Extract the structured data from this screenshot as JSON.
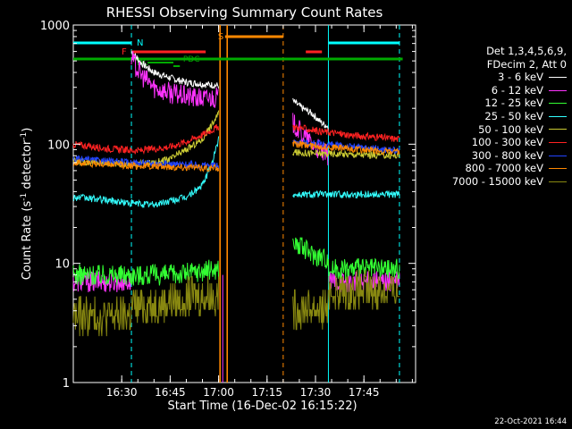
{
  "chart_data": {
    "type": "line",
    "title": "RHESSI Observing Summary Count Rates",
    "xlabel": "Start Time (16-Dec-02 16:15:22)",
    "ylabel": "Count Rate (s-1 detector-1)",
    "y_scale": "log",
    "ylim": [
      1,
      1000
    ],
    "xlim_minutes_after_1615": [
      0,
      106
    ],
    "x_ticks": [
      "16:30",
      "16:45",
      "17:00",
      "17:15",
      "17:30",
      "17:45"
    ],
    "y_ticks": [
      "1",
      "10",
      "100",
      "1000"
    ],
    "data_gap": [
      "17:01",
      "17:23"
    ],
    "night_intervals": [
      [
        "16:15",
        "16:33"
      ],
      [
        "17:34",
        "17:56"
      ]
    ],
    "saa_interval": [
      "17:02",
      "17:20"
    ],
    "flare_intervals": [
      [
        "16:33",
        "16:56"
      ],
      [
        "17:27",
        "17:32"
      ]
    ],
    "attenuator_interval": [
      "16:15",
      "17:57"
    ],
    "flag_labels": {
      "night": "N",
      "saa": "S",
      "flare": "F",
      "decimation": "DC",
      "pdc": "PDC"
    },
    "series": [
      {
        "name": "3 - 6 keV",
        "color": "#ffffff",
        "segments": [
          {
            "x": [
              "16:33",
              "16:36",
              "16:40",
              "16:45",
              "16:50",
              "16:55",
              "17:00"
            ],
            "y": [
              600,
              480,
              400,
              360,
              330,
              320,
              310
            ]
          },
          {
            "x": [
              "17:23",
              "17:26",
              "17:29",
              "17:32",
              "17:34"
            ],
            "y": [
              230,
              200,
              180,
              150,
              140
            ]
          }
        ]
      },
      {
        "name": "6 - 12 keV",
        "color": "#ff33ff",
        "segments": [
          {
            "x": [
              "16:15",
              "16:33"
            ],
            "y": [
              7,
              7
            ]
          },
          {
            "x": [
              "16:33",
              "16:36",
              "16:40",
              "16:45",
              "16:50",
              "16:55",
              "17:00"
            ],
            "y": [
              520,
              380,
              300,
              270,
              250,
              240,
              250
            ]
          },
          {
            "x": [
              "17:23",
              "17:26",
              "17:29",
              "17:32",
              "17:34"
            ],
            "y": [
              150,
              120,
              100,
              85,
              80
            ]
          },
          {
            "x": [
              "17:34",
              "17:56"
            ],
            "y": [
              7,
              7
            ]
          }
        ]
      },
      {
        "name": "12 - 25 keV",
        "color": "#33ff33",
        "segments": [
          {
            "x": [
              "16:15",
              "16:33"
            ],
            "y": [
              8,
              8
            ]
          },
          {
            "x": [
              "16:33",
              "16:45",
              "17:00"
            ],
            "y": [
              8,
              8,
              9
            ]
          },
          {
            "x": [
              "17:23",
              "17:29",
              "17:34"
            ],
            "y": [
              15,
              12,
              11
            ]
          },
          {
            "x": [
              "17:34",
              "17:56"
            ],
            "y": [
              9,
              9
            ]
          }
        ]
      },
      {
        "name": "25 - 50 keV",
        "color": "#33ffff",
        "segments": [
          {
            "x": [
              "16:15",
              "16:25",
              "16:33",
              "16:40",
              "16:50",
              "16:55",
              "16:58",
              "17:00"
            ],
            "y": [
              36,
              34,
              32,
              31,
              36,
              45,
              70,
              110
            ]
          },
          {
            "x": [
              "17:23",
              "17:56"
            ],
            "y": [
              38,
              38
            ]
          }
        ]
      },
      {
        "name": "50 - 100 keV",
        "color": "#cccc33",
        "segments": [
          {
            "x": [
              "16:15",
              "16:33",
              "16:40",
              "16:45",
              "16:50",
              "16:55",
              "17:00"
            ],
            "y": [
              72,
              68,
              70,
              75,
              90,
              110,
              180
            ]
          },
          {
            "x": [
              "17:23",
              "17:56"
            ],
            "y": [
              85,
              80
            ]
          }
        ]
      },
      {
        "name": "100 - 300 keV",
        "color": "#ff2222",
        "segments": [
          {
            "x": [
              "16:15",
              "16:25",
              "16:35",
              "16:45",
              "16:50",
              "16:55",
              "17:00"
            ],
            "y": [
              100,
              92,
              88,
              95,
              105,
              120,
              140
            ]
          },
          {
            "x": [
              "17:23",
              "17:30",
              "17:40",
              "17:56"
            ],
            "y": [
              140,
              130,
              120,
              110
            ]
          }
        ]
      },
      {
        "name": "300 - 800 keV",
        "color": "#2244ff",
        "segments": [
          {
            "x": [
              "16:15",
              "16:33",
              "17:00"
            ],
            "y": [
              75,
              70,
              66
            ]
          },
          {
            "x": [
              "17:23",
              "17:56"
            ],
            "y": [
              105,
              88
            ]
          }
        ]
      },
      {
        "name": "800 - 7000 keV",
        "color": "#ff8800",
        "segments": [
          {
            "x": [
              "16:15",
              "16:33",
              "17:00"
            ],
            "y": [
              70,
              66,
              63
            ]
          },
          {
            "x": [
              "17:23",
              "17:56"
            ],
            "y": [
              100,
              85
            ]
          }
        ]
      },
      {
        "name": "7000 - 15000 keV",
        "color": "#888811",
        "segments": [
          {
            "x": [
              "16:15",
              "16:33"
            ],
            "y": [
              3.6,
              3.6
            ]
          },
          {
            "x": [
              "16:33",
              "16:45",
              "17:00"
            ],
            "y": [
              4.2,
              4.8,
              5.5
            ]
          },
          {
            "x": [
              "17:23",
              "17:34"
            ],
            "y": [
              4.2,
              4.2
            ]
          },
          {
            "x": [
              "17:34",
              "17:56"
            ],
            "y": [
              5.8,
              5.8
            ]
          }
        ]
      }
    ]
  },
  "legend": {
    "header_line1": "Det 1,3,4,5,6,9,",
    "header_line2": "FDecim 2, Att 0"
  },
  "timestamp": "22-Oct-2021 16:44"
}
